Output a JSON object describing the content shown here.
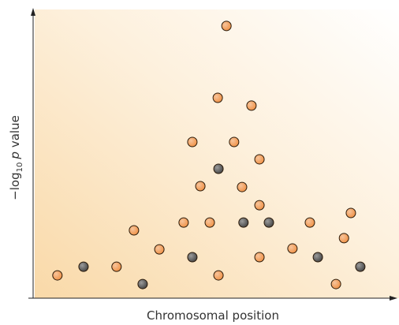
{
  "chart_data": {
    "type": "scatter",
    "x_label": "Chromosomal position",
    "y_label": [
      "−log",
      "10",
      "p",
      "value"
    ],
    "xlim": [
      0,
      100
    ],
    "ylim": [
      0,
      100
    ],
    "series": [
      {
        "color": "#f0944a",
        "x": [
          6.7,
          23.0,
          27.8,
          34.8,
          41.5,
          43.9,
          46.1,
          48.7,
          50.9,
          51.1,
          53.3,
          55.4,
          57.6,
          60.2,
          62.4,
          62.4,
          62.4,
          71.5,
          76.3,
          83.5,
          85.7,
          87.6
        ],
        "values": [
          7.9,
          10.9,
          23.5,
          16.9,
          26.2,
          54.1,
          38.8,
          26.2,
          69.4,
          7.9,
          94.3,
          54.1,
          38.5,
          66.7,
          48.1,
          32.2,
          14.2,
          17.2,
          26.2,
          4.9,
          20.8,
          29.5
        ]
      },
      {
        "color": "#4a4a4a",
        "x": [
          13.9,
          30.2,
          43.9,
          51.1,
          58.0,
          65.0,
          78.5,
          90.2
        ],
        "values": [
          10.9,
          4.9,
          14.2,
          44.8,
          26.2,
          26.2,
          14.2,
          10.9
        ]
      }
    ]
  }
}
